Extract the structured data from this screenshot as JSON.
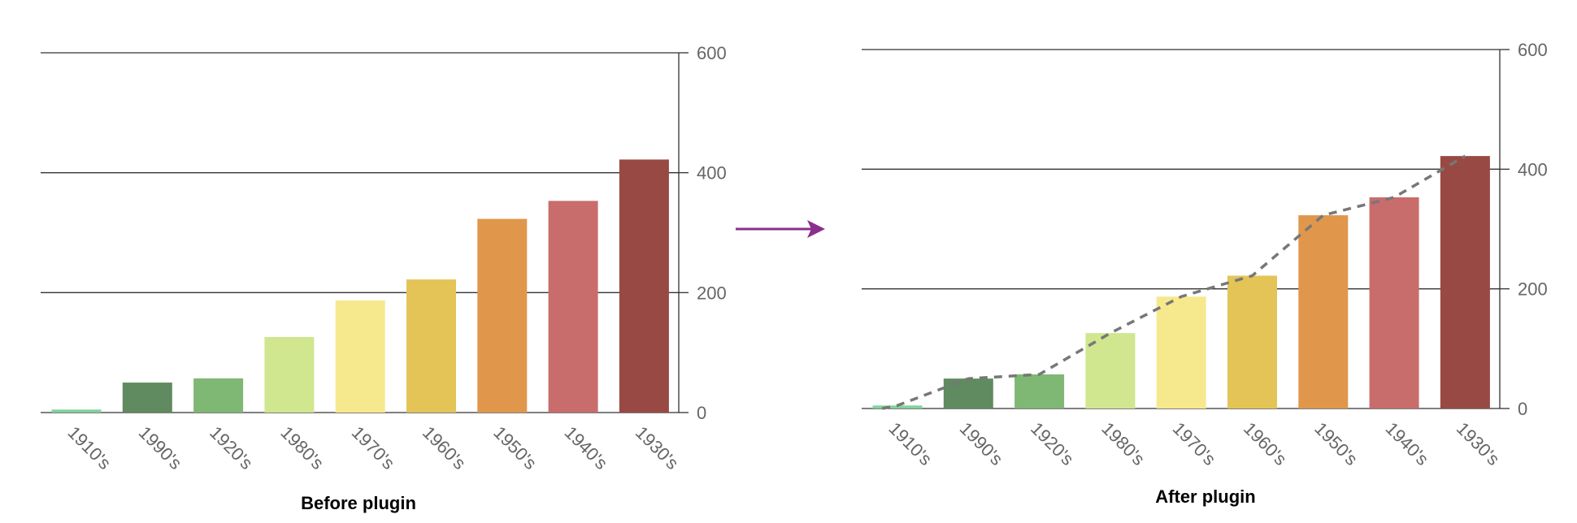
{
  "chart_data": [
    {
      "type": "bar",
      "title": "Before plugin",
      "categories": [
        "1910's",
        "1990's",
        "1920's",
        "1980's",
        "1970's",
        "1960's",
        "1950's",
        "1940's",
        "1930's"
      ],
      "values": [
        5,
        50,
        57,
        126,
        187,
        222,
        323,
        353,
        422
      ],
      "colors": [
        "#7fd39a",
        "#608a5f",
        "#7fb774",
        "#d0e68f",
        "#f6e98d",
        "#e4c456",
        "#e0974c",
        "#c86d6b",
        "#994944"
      ],
      "ylim": [
        0,
        600
      ],
      "yticks": [
        0,
        200,
        400,
        600
      ],
      "xlabel": "",
      "ylabel": "",
      "grid": true,
      "y_axis_side": "right",
      "trend_line": false
    },
    {
      "type": "bar",
      "title": "After plugin",
      "categories": [
        "1910's",
        "1990's",
        "1920's",
        "1980's",
        "1970's",
        "1960's",
        "1950's",
        "1940's",
        "1930's"
      ],
      "values": [
        5,
        50,
        57,
        126,
        187,
        222,
        323,
        353,
        422
      ],
      "colors": [
        "#7fd39a",
        "#608a5f",
        "#7fb774",
        "#d0e68f",
        "#f6e98d",
        "#e4c456",
        "#e0974c",
        "#c86d6b",
        "#994944"
      ],
      "ylim": [
        0,
        600
      ],
      "yticks": [
        0,
        200,
        400,
        600
      ],
      "xlabel": "",
      "ylabel": "",
      "grid": true,
      "y_axis_side": "right",
      "trend_line": true,
      "trend_color": "#777777"
    }
  ],
  "arrow": {
    "color": "#8a2f8d"
  }
}
